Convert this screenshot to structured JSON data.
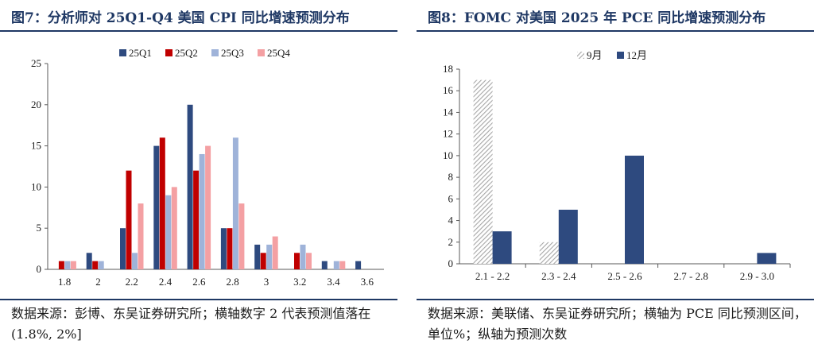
{
  "panels": {
    "left": {
      "title": "图7：分析师对 25Q1-Q4 美国 CPI 同比增速预测分布",
      "source": "数据来源：彭博、东吴证券研究所；横轴数字 2 代表预测值落在(1.8%, 2%]"
    },
    "right": {
      "title": "图8：FOMC 对美国 2025 年 PCE 同比增速预测分布",
      "source": "数据来源：美联储、东吴证券研究所；横轴为 PCE 同比预测区间，单位%；纵轴为预测次数"
    }
  },
  "chart_data": [
    {
      "type": "bar",
      "title": "图7：分析师对 25Q1-Q4 美国 CPI 同比增速预测分布",
      "categories": [
        "1.8",
        "2",
        "2.2",
        "2.4",
        "2.6",
        "2.8",
        "3",
        "3.2",
        "3.4",
        "3.6"
      ],
      "ylim": [
        0,
        25
      ],
      "yticks": [
        0,
        5,
        10,
        15,
        20,
        25
      ],
      "grid": false,
      "legend": "top-center",
      "series": [
        {
          "name": "25Q1",
          "color": "#2e4a7f",
          "values": [
            0,
            2,
            5,
            15,
            20,
            5,
            3,
            0,
            1,
            1
          ]
        },
        {
          "name": "25Q2",
          "color": "#c00000",
          "values": [
            1,
            1,
            12,
            16,
            12,
            5,
            2,
            2,
            0,
            0
          ]
        },
        {
          "name": "25Q3",
          "color": "#9fb3d9",
          "values": [
            1,
            1,
            2,
            9,
            14,
            16,
            3,
            3,
            1,
            0
          ]
        },
        {
          "name": "25Q4",
          "color": "#f4a0a3",
          "values": [
            1,
            0,
            8,
            10,
            15,
            8,
            4,
            2,
            1,
            0
          ]
        }
      ]
    },
    {
      "type": "bar",
      "title": "图8：FOMC 对美国 2025 年 PCE 同比增速预测分布",
      "categories": [
        "2.1 - 2.2",
        "2.3 - 2.4",
        "2.5 - 2.6",
        "2.7 - 2.8",
        "2.9 - 3.0"
      ],
      "ylim": [
        0,
        18
      ],
      "yticks": [
        0,
        2,
        4,
        6,
        8,
        10,
        12,
        14,
        16,
        18
      ],
      "grid": false,
      "legend": "top-center",
      "series": [
        {
          "name": "9月",
          "color": "#bfbfbf",
          "pattern": "hatch",
          "values": [
            17,
            2,
            0,
            0,
            0
          ]
        },
        {
          "name": "12月",
          "color": "#2e4a7f",
          "values": [
            3,
            5,
            10,
            0,
            1
          ]
        }
      ]
    }
  ]
}
